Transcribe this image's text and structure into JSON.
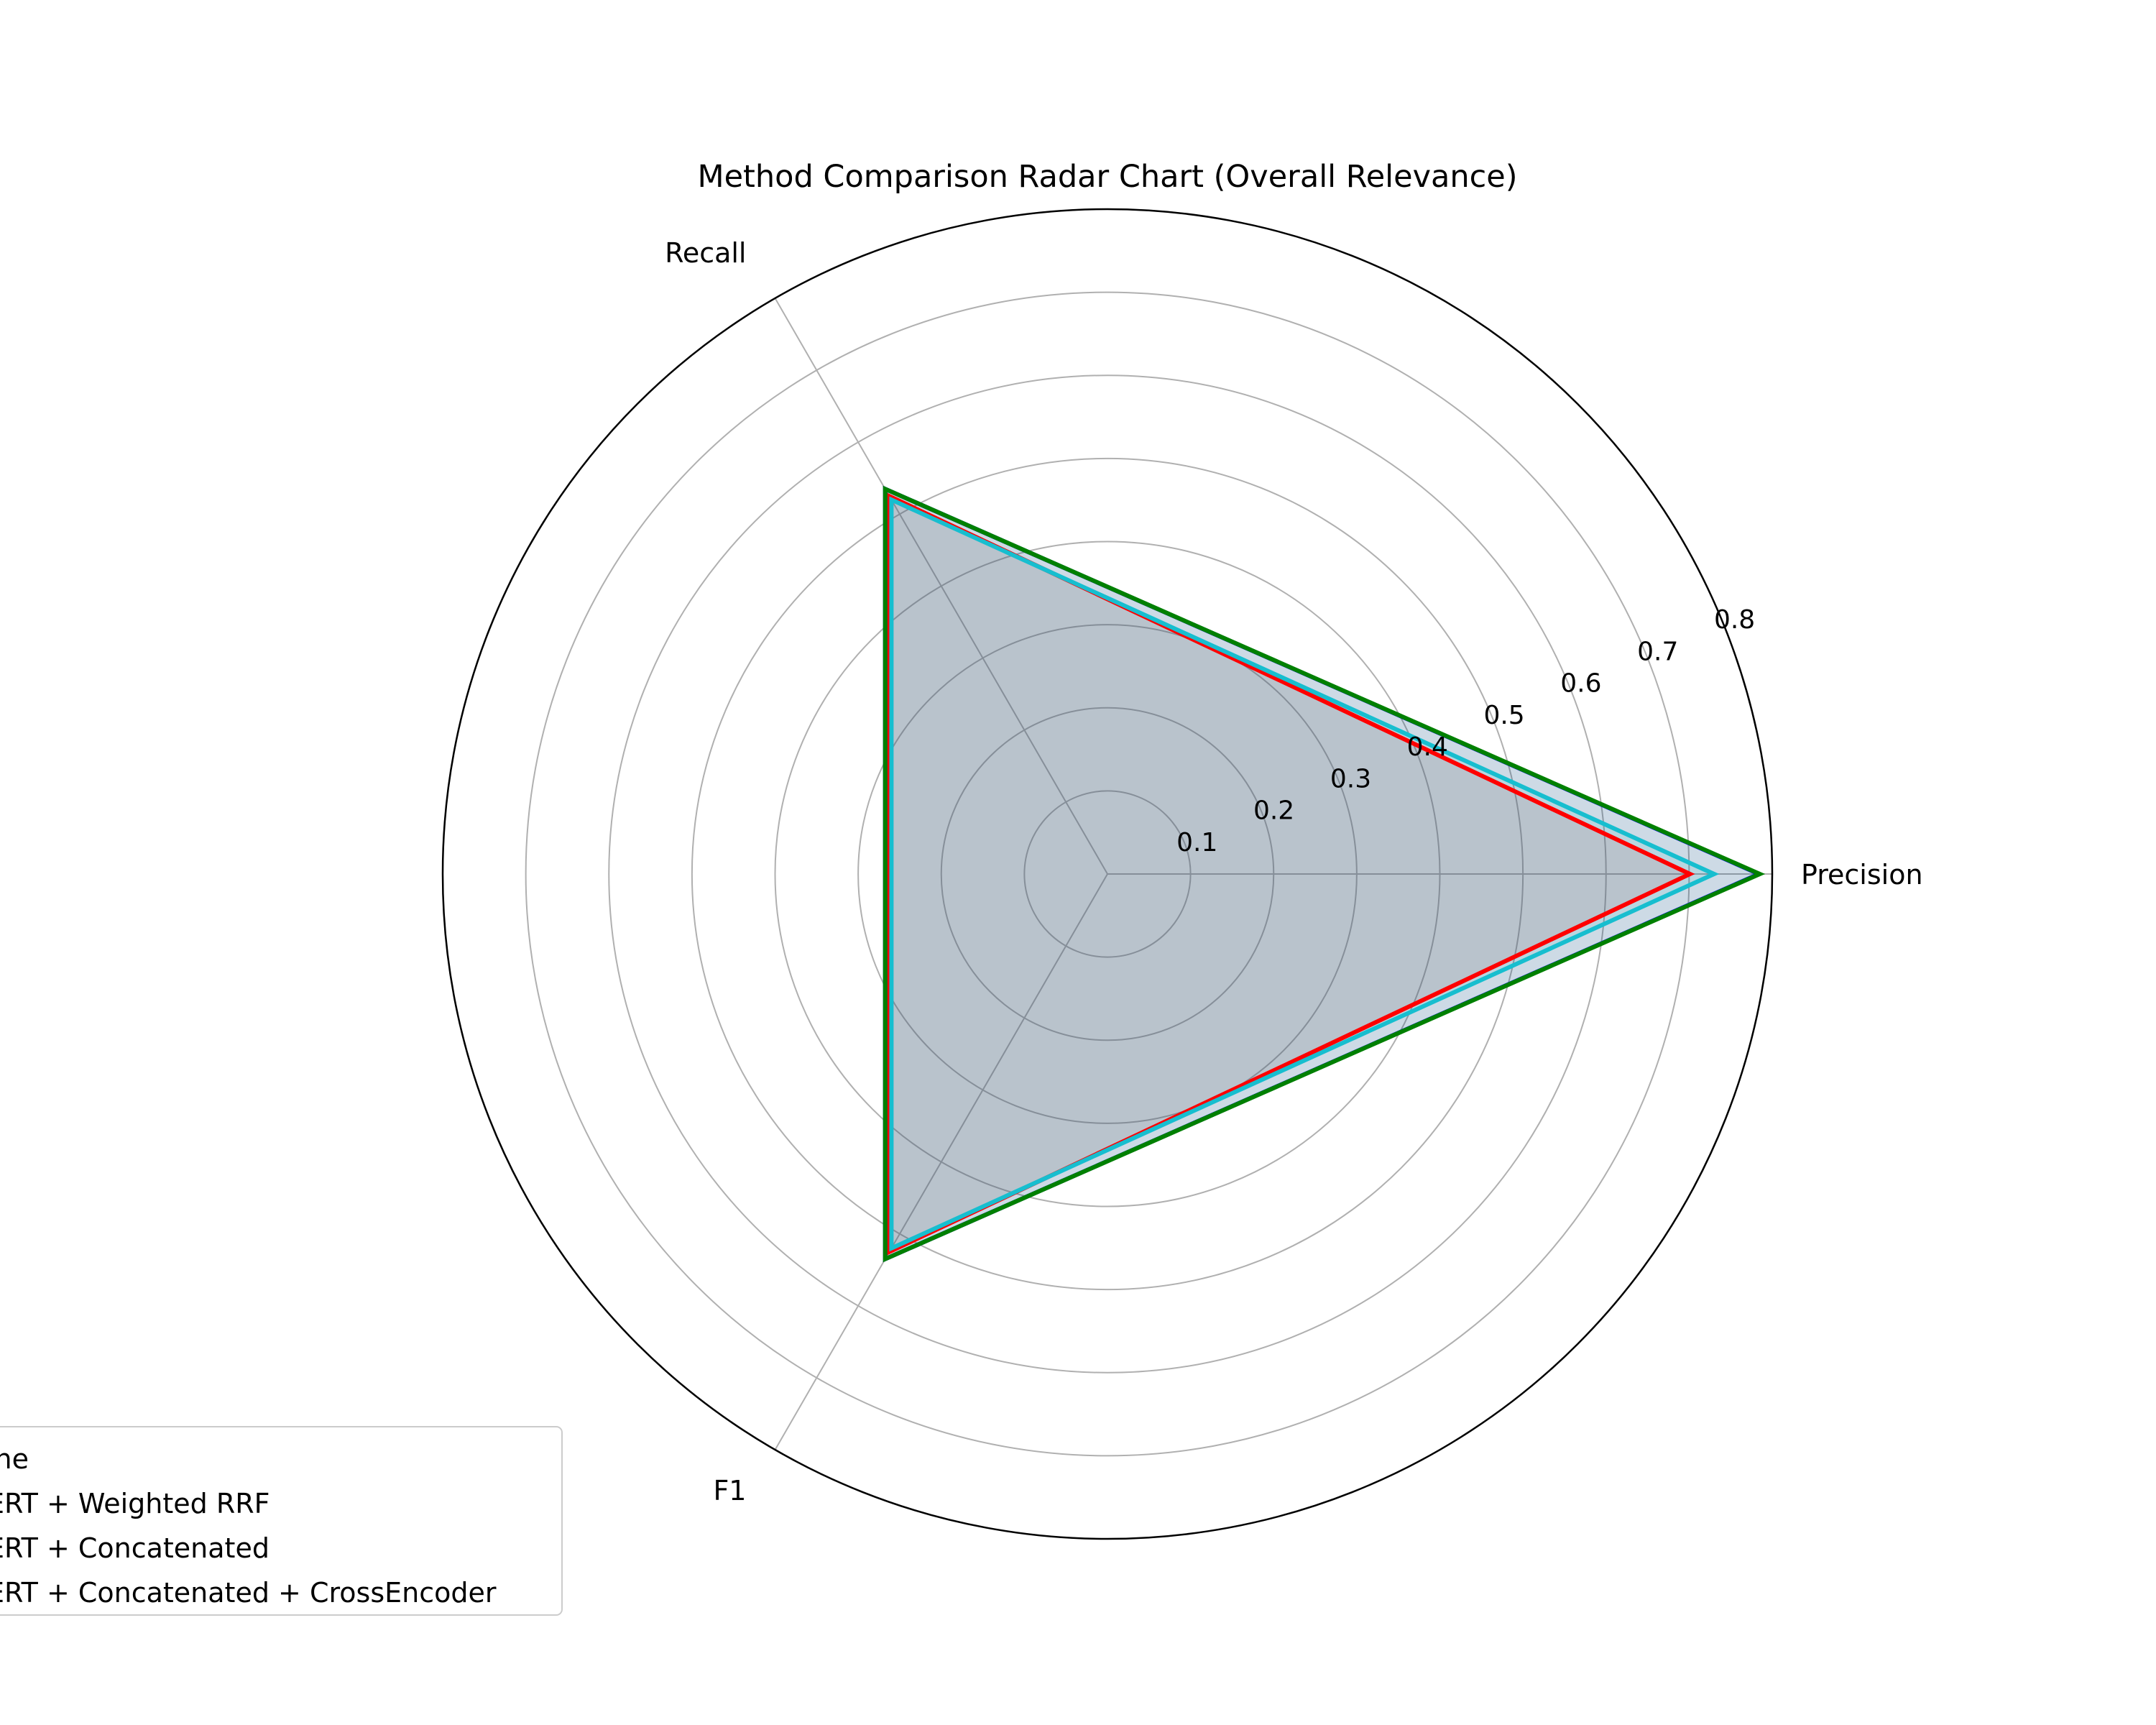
{
  "chart_data": {
    "type": "radar",
    "title": "Method Comparison Radar Chart (Overall Relevance)",
    "axes": [
      "Precision",
      "Recall",
      "F1"
    ],
    "rlim": [
      0,
      0.8
    ],
    "rticks": [
      "0.1",
      "0.2",
      "0.3",
      "0.4",
      "0.5",
      "0.6",
      "0.7",
      "0.8"
    ],
    "grid": true,
    "legend_position": "lower-left",
    "series": [
      {
        "name": "ine",
        "color": "#ff0000",
        "values": [
          0.701,
          0.525,
          0.525
        ],
        "fill": true
      },
      {
        "name": "ERT + Weighted RRF",
        "color": "#0000ff",
        "values": [
          0.784,
          0.535,
          0.535
        ],
        "fill": true
      },
      {
        "name": "ERT + Concatenated",
        "color": "#17becf",
        "values": [
          0.73,
          0.52,
          0.52
        ],
        "fill": true
      },
      {
        "name": "ERT + Concatenated + CrossEncoder",
        "color": "#008000",
        "values": [
          0.785,
          0.535,
          0.535
        ],
        "fill": true
      }
    ]
  }
}
